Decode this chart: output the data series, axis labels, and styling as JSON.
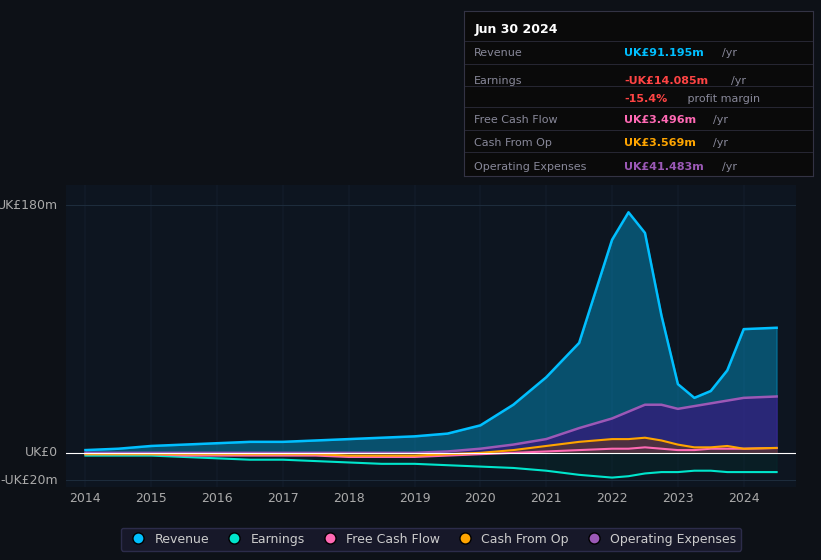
{
  "background_color": "#0d1117",
  "plot_bg_color": "#0d1520",
  "grid_color": "#1e2d3d",
  "title_box": {
    "date": "Jun 30 2024",
    "rows": [
      {
        "label": "Revenue",
        "value": "UK£91.195m",
        "unit": "/yr",
        "value_color": "#00bfff"
      },
      {
        "label": "Earnings",
        "value": "-UK£14.085m",
        "unit": "/yr",
        "value_color": "#ff4444"
      },
      {
        "label": "",
        "value": "-15.4%",
        "unit": " profit margin",
        "value_color": "#ff4444"
      },
      {
        "label": "Free Cash Flow",
        "value": "UK£3.496m",
        "unit": "/yr",
        "value_color": "#ff69b4"
      },
      {
        "label": "Cash From Op",
        "value": "UK£3.569m",
        "unit": "/yr",
        "value_color": "#ffa500"
      },
      {
        "label": "Operating Expenses",
        "value": "UK£41.483m",
        "unit": "/yr",
        "value_color": "#9b59b6"
      }
    ]
  },
  "years": [
    2014,
    2014.5,
    2015,
    2015.5,
    2016,
    2016.5,
    2017,
    2017.5,
    2018,
    2018.5,
    2019,
    2019.5,
    2020,
    2020.5,
    2021,
    2021.5,
    2022,
    2022.25,
    2022.5,
    2022.75,
    2023,
    2023.25,
    2023.5,
    2023.75,
    2024,
    2024.5
  ],
  "revenue": [
    2,
    3,
    5,
    6,
    7,
    8,
    8,
    9,
    10,
    11,
    12,
    14,
    20,
    35,
    55,
    80,
    155,
    175,
    160,
    100,
    50,
    40,
    45,
    60,
    90,
    91
  ],
  "earnings": [
    -2,
    -2,
    -2,
    -3,
    -4,
    -5,
    -5,
    -6,
    -7,
    -8,
    -8,
    -9,
    -10,
    -11,
    -13,
    -16,
    -18,
    -17,
    -15,
    -14,
    -14,
    -13,
    -13,
    -14,
    -14,
    -14
  ],
  "fcf": [
    -1,
    -1,
    -1,
    -2,
    -2,
    -2,
    -2,
    -2,
    -3,
    -3,
    -3,
    -2,
    -1,
    0,
    1,
    2,
    3,
    3,
    4,
    3,
    2,
    2,
    3,
    3,
    3,
    3.5
  ],
  "cashfromop": [
    -1,
    -1,
    -1,
    -1,
    -1,
    -1,
    -1,
    -1,
    -2,
    -2,
    -2,
    -1,
    0,
    2,
    5,
    8,
    10,
    10,
    11,
    9,
    6,
    4,
    4,
    5,
    3,
    3.6
  ],
  "opex": [
    0,
    0,
    0,
    0,
    0,
    0,
    0,
    0,
    0,
    0,
    0,
    1,
    3,
    6,
    10,
    18,
    25,
    30,
    35,
    35,
    32,
    34,
    36,
    38,
    40,
    41
  ],
  "ylim": [
    -25,
    195
  ],
  "yticks": [
    -20,
    0,
    180
  ],
  "xlim": [
    2013.7,
    2024.8
  ],
  "xticks": [
    2014,
    2015,
    2016,
    2017,
    2018,
    2019,
    2020,
    2021,
    2022,
    2023,
    2024
  ],
  "legend": [
    {
      "label": "Revenue",
      "color": "#00bfff"
    },
    {
      "label": "Earnings",
      "color": "#00e5cc"
    },
    {
      "label": "Free Cash Flow",
      "color": "#ff69b4"
    },
    {
      "label": "Cash From Op",
      "color": "#ffa500"
    },
    {
      "label": "Operating Expenses",
      "color": "#9b59b6"
    }
  ]
}
